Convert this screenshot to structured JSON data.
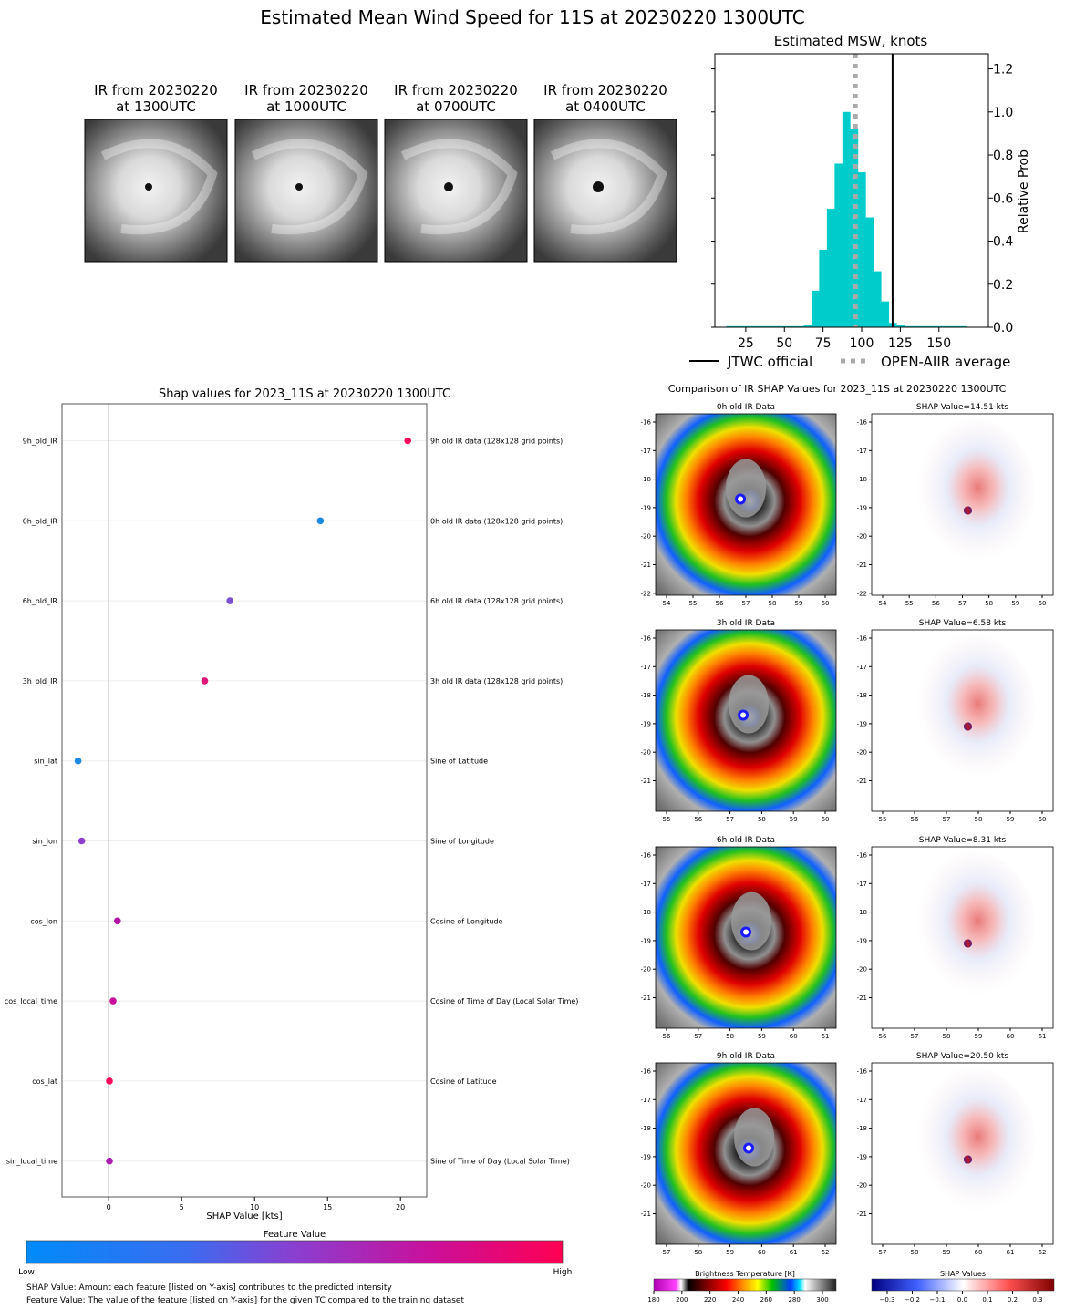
{
  "main_title": "Estimated Mean Wind Speed for 11S at 20230220 1300UTC",
  "ir_thumbnails": [
    {
      "line1": "IR from 20230220",
      "line2": "at 1300UTC",
      "eye_r": 4
    },
    {
      "line1": "IR from 20230220",
      "line2": "at 1000UTC",
      "eye_r": 4
    },
    {
      "line1": "IR from 20230220",
      "line2": "at 0700UTC",
      "eye_r": 5
    },
    {
      "line1": "IR from 20230220",
      "line2": "at 0400UTC",
      "eye_r": 6
    }
  ],
  "chart_data": [
    {
      "type": "bar",
      "title": "Estimated MSW, knots",
      "xlabel": "",
      "ylabel": "Relative Prob",
      "xlim": [
        5,
        182
      ],
      "ylim": [
        0,
        1.27
      ],
      "xticks": [
        25,
        50,
        75,
        100,
        125,
        150
      ],
      "yticks": [
        0.0,
        0.2,
        0.4,
        0.6,
        0.8,
        1.0,
        1.2
      ],
      "bin_width": 5,
      "bins": [
        {
          "x": 15,
          "y": 0.005
        },
        {
          "x": 20,
          "y": 0.005
        },
        {
          "x": 25,
          "y": 0.005
        },
        {
          "x": 30,
          "y": 0.005
        },
        {
          "x": 35,
          "y": 0.005
        },
        {
          "x": 40,
          "y": 0.005
        },
        {
          "x": 45,
          "y": 0.005
        },
        {
          "x": 50,
          "y": 0.005
        },
        {
          "x": 55,
          "y": 0.005
        },
        {
          "x": 60,
          "y": 0.005
        },
        {
          "x": 65,
          "y": 0.01
        },
        {
          "x": 70,
          "y": 0.17
        },
        {
          "x": 75,
          "y": 0.36
        },
        {
          "x": 80,
          "y": 0.55
        },
        {
          "x": 85,
          "y": 0.76
        },
        {
          "x": 90,
          "y": 1.0
        },
        {
          "x": 95,
          "y": 0.92
        },
        {
          "x": 100,
          "y": 0.72
        },
        {
          "x": 105,
          "y": 0.51
        },
        {
          "x": 110,
          "y": 0.26
        },
        {
          "x": 115,
          "y": 0.12
        },
        {
          "x": 120,
          "y": 0.02
        },
        {
          "x": 125,
          "y": 0.01
        },
        {
          "x": 130,
          "y": 0.005
        },
        {
          "x": 135,
          "y": 0.005
        },
        {
          "x": 140,
          "y": 0.005
        },
        {
          "x": 145,
          "y": 0.005
        },
        {
          "x": 150,
          "y": 0.005
        },
        {
          "x": 155,
          "y": 0.005
        },
        {
          "x": 160,
          "y": 0.005
        },
        {
          "x": 165,
          "y": 0.005
        }
      ],
      "bar_color": "#00cccc",
      "jtwc_official": 120,
      "open_aiir_average": 96,
      "legend": [
        {
          "label": "JTWC official",
          "style": "solid",
          "color": "#000000"
        },
        {
          "label": "OPEN-AIIR average",
          "style": "dotted",
          "color": "#aaaaaa"
        }
      ]
    },
    {
      "type": "scatter",
      "title": "Shap values for 2023_11S at 20230220 1300UTC",
      "xlabel": "SHAP Value [kts]",
      "xlim": [
        -3.2,
        21.8
      ],
      "xticks": [
        0,
        5,
        10,
        15,
        20
      ],
      "features": [
        {
          "name": "9h_old_IR",
          "description": "9h old IR data (128x128 grid points)",
          "shap": 20.5,
          "color": "#ff0a5a"
        },
        {
          "name": "0h_old_IR",
          "description": "0h old IR data (128x128 grid points)",
          "shap": 14.51,
          "color": "#1e88e5"
        },
        {
          "name": "6h_old_IR",
          "description": "6h old IR data (128x128 grid points)",
          "shap": 8.31,
          "color": "#7b4fd1"
        },
        {
          "name": "3h_old_IR",
          "description": "3h old IR data (128x128 grid points)",
          "shap": 6.58,
          "color": "#e0157a"
        },
        {
          "name": "sin_lat",
          "description": "Sine of Latitude",
          "shap": -2.1,
          "color": "#1e88e5"
        },
        {
          "name": "sin_lon",
          "description": "Sine of Longitude",
          "shap": -1.85,
          "color": "#8f3fcf"
        },
        {
          "name": "cos_lon",
          "description": "Cosine of Longitude",
          "shap": 0.6,
          "color": "#b012a6"
        },
        {
          "name": "cos_local_time",
          "description": "Cosine of Time of Day (Local Solar Time)",
          "shap": 0.3,
          "color": "#c8109a"
        },
        {
          "name": "cos_lat",
          "description": "Cosine of Latitude",
          "shap": 0.05,
          "color": "#ff0a5a"
        },
        {
          "name": "sin_local_time",
          "description": "Sine of Time of Day (Local Solar Time)",
          "shap": 0.05,
          "color": "#a91db0"
        }
      ],
      "colorbar": {
        "title": "Feature Value",
        "low": "Low",
        "high": "High"
      },
      "footnotes": [
        "SHAP Value: Amount each feature [listed on Y-axis] contributes to the predicted intensity",
        "Feature Value: The value of the feature [listed on Y-axis] for the given TC compared to the training dataset"
      ]
    },
    {
      "type": "heatmap",
      "title": "Comparison of IR SHAP Values for 2023_11S at 20230220 1300UTC",
      "rows": [
        {
          "ir_title": "0h old IR Data",
          "shap_title": "SHAP Value=14.51 kts",
          "xticks": [
            "54",
            "55",
            "56",
            "57",
            "58",
            "59",
            "60"
          ],
          "yticks": [
            "-16",
            "-17",
            "-18",
            "-19",
            "-20",
            "-21",
            "-22"
          ]
        },
        {
          "ir_title": "3h old IR Data",
          "shap_title": "SHAP Value=6.58 kts",
          "xticks": [
            "55",
            "56",
            "57",
            "58",
            "59",
            "60"
          ],
          "yticks": [
            "-16",
            "-17",
            "-18",
            "-19",
            "-20",
            "-21"
          ]
        },
        {
          "ir_title": "6h old IR Data",
          "shap_title": "SHAP Value=8.31 kts",
          "xticks": [
            "56",
            "57",
            "58",
            "59",
            "60",
            "61"
          ],
          "yticks": [
            "-16",
            "-17",
            "-18",
            "-19",
            "-20",
            "-21"
          ]
        },
        {
          "ir_title": "9h old IR Data",
          "shap_title": "SHAP Value=20.50 kts",
          "xticks": [
            "57",
            "58",
            "59",
            "60",
            "61",
            "62"
          ],
          "yticks": [
            "-16",
            "-17",
            "-18",
            "-19",
            "-20",
            "-21"
          ]
        }
      ],
      "bt_colorbar": {
        "title": "Brightness Temperature [K]",
        "ticks": [
          "180",
          "200",
          "220",
          "240",
          "260",
          "280",
          "300"
        ]
      },
      "shap_colorbar": {
        "title": "SHAP Values",
        "ticks": [
          "−0.3",
          "−0.2",
          "−0.1",
          "0.0",
          "0.1",
          "0.2",
          "0.3"
        ]
      }
    }
  ]
}
